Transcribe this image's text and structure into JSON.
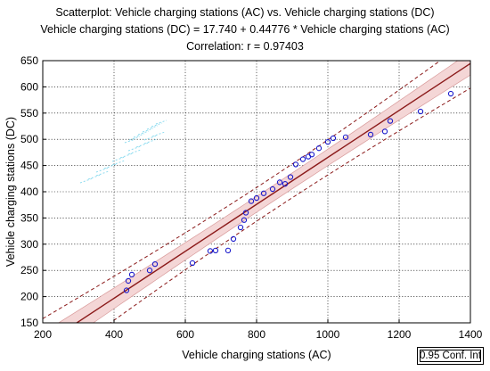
{
  "header": {
    "title": "Scatterplot: Vehicle charging stations (AC) vs. Vehicle charging stations (DC)",
    "equation": "Vehicle charging stations (DC) = 17.740 + 0.44776 * Vehicle charging stations (AC)",
    "correlation": "Correlation: r =  0.97403"
  },
  "legend": {
    "label": "0.95 Conf. Int"
  },
  "colors": {
    "points": "#1a1acc",
    "fit_line": "#8b1a1a",
    "band_fill": "#f4d6d6",
    "band_dash": "#8b1a1a"
  },
  "chart_data": {
    "type": "scatter",
    "title": "Scatterplot: Vehicle charging stations (AC) vs. Vehicle charging stations (DC)",
    "xlabel": "Vehicle charging stations  (AC)",
    "ylabel": "Vehicle charging stations (DC)",
    "xlim": [
      200,
      1400
    ],
    "ylim": [
      150,
      650
    ],
    "x_ticks": [
      200,
      400,
      600,
      800,
      1000,
      1200,
      1400
    ],
    "y_ticks": [
      150,
      200,
      250,
      300,
      350,
      400,
      450,
      500,
      550,
      600,
      650
    ],
    "grid": true,
    "fit": {
      "intercept": 17.74,
      "slope": 0.44776
    },
    "confidence_band": {
      "level": 0.95,
      "inner_half_width": 15,
      "outer_half_width": 32
    },
    "points": [
      [
        435,
        212
      ],
      [
        440,
        230
      ],
      [
        450,
        242
      ],
      [
        500,
        250
      ],
      [
        515,
        262
      ],
      [
        620,
        264
      ],
      [
        670,
        287
      ],
      [
        685,
        288
      ],
      [
        720,
        288
      ],
      [
        735,
        310
      ],
      [
        755,
        332
      ],
      [
        765,
        346
      ],
      [
        770,
        360
      ],
      [
        785,
        382
      ],
      [
        800,
        388
      ],
      [
        820,
        397
      ],
      [
        845,
        405
      ],
      [
        865,
        418
      ],
      [
        880,
        415
      ],
      [
        895,
        428
      ],
      [
        910,
        452
      ],
      [
        930,
        462
      ],
      [
        945,
        467
      ],
      [
        955,
        471
      ],
      [
        975,
        483
      ],
      [
        1000,
        495
      ],
      [
        1015,
        502
      ],
      [
        1050,
        504
      ],
      [
        1120,
        509
      ],
      [
        1160,
        515
      ],
      [
        1175,
        535
      ],
      [
        1260,
        553
      ],
      [
        1345,
        587
      ]
    ]
  }
}
